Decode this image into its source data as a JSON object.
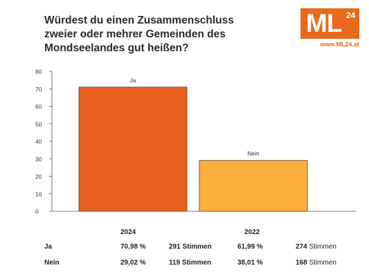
{
  "title_lines": [
    "Würdest du einen Zusammenschluss",
    "zweier oder mehrer Gemeinden des",
    "Mondseelandes gut heißen?"
  ],
  "logo": {
    "text": "ML",
    "superscript": "24",
    "url": "www.ML24.at"
  },
  "colors": {
    "brand": "#e96a1c",
    "ja": "#e8611f",
    "nein": "#fbb040"
  },
  "chart_data": {
    "type": "bar",
    "categories": [
      "Ja",
      "Nein"
    ],
    "values": [
      70.98,
      29.02
    ],
    "colors": [
      "#e8611f",
      "#fbb040"
    ],
    "ylim": [
      0,
      80
    ],
    "yticks": [
      0,
      10,
      20,
      30,
      40,
      50,
      60,
      70,
      80
    ],
    "grid": false
  },
  "table": {
    "headers": [
      "2024",
      "2022"
    ],
    "rows": [
      {
        "label": "Ja",
        "pct_2024": "70,98 %",
        "votes_2024": "291",
        "pct_2022": "61,99 %",
        "votes_2022": "274"
      },
      {
        "label": "Nein",
        "pct_2024": "29,02 %",
        "votes_2024": "119",
        "pct_2022": "38,01 %",
        "votes_2022": "168"
      }
    ],
    "votes_unit": "Stimmen"
  }
}
